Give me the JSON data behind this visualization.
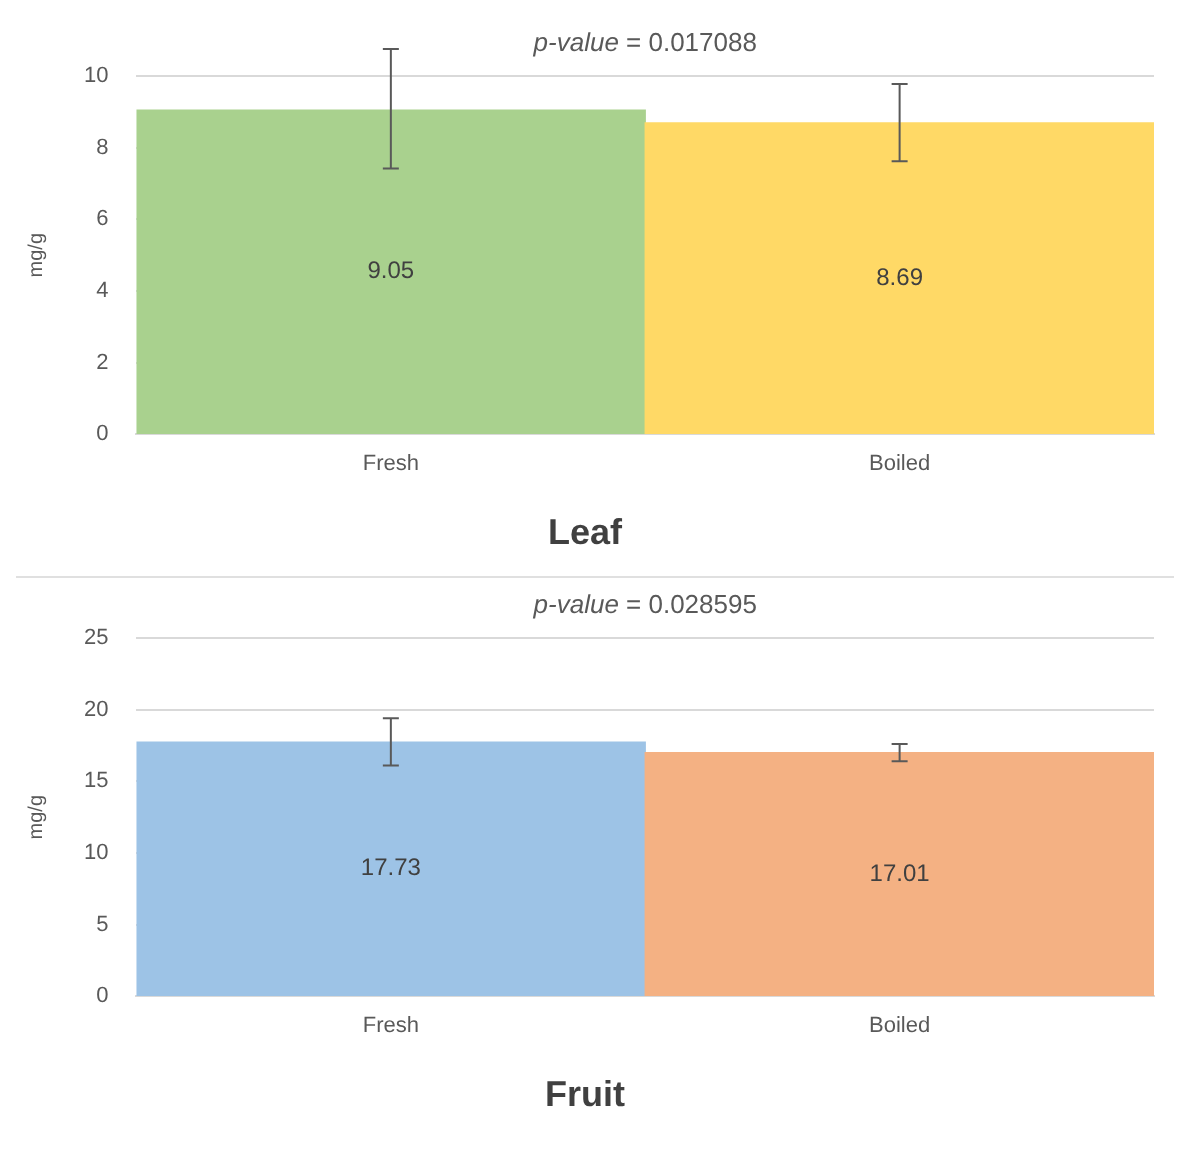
{
  "chart_data": [
    {
      "type": "bar",
      "title": "Leaf",
      "ylabel": "mg/g",
      "categories": [
        "Fresh",
        "Boiled"
      ],
      "values": [
        9.05,
        8.69
      ],
      "colors": [
        "#a9d18e",
        "#ffd966"
      ],
      "errors": [
        [
          7.42,
          10.75
        ],
        [
          7.62,
          9.78
        ]
      ],
      "ylim": [
        0,
        10
      ],
      "yticks": [
        0,
        2,
        4,
        6,
        8,
        10
      ],
      "grid": "y",
      "data_labels": true,
      "annotations": [
        "p-value = 0.017088"
      ]
    },
    {
      "type": "bar",
      "title": "Fruit",
      "ylabel": "mg/g",
      "categories": [
        "Fresh",
        "Boiled"
      ],
      "values": [
        17.73,
        17.01
      ],
      "colors": [
        "#9dc3e6",
        "#f4b183"
      ],
      "errors": [
        [
          16.1,
          19.4
        ],
        [
          16.4,
          17.6
        ]
      ],
      "ylim": [
        0,
        25
      ],
      "yticks": [
        0,
        5,
        10,
        15,
        20,
        25
      ],
      "grid": "y",
      "data_labels": true,
      "annotations": [
        "p-value = 0.028595"
      ]
    }
  ]
}
